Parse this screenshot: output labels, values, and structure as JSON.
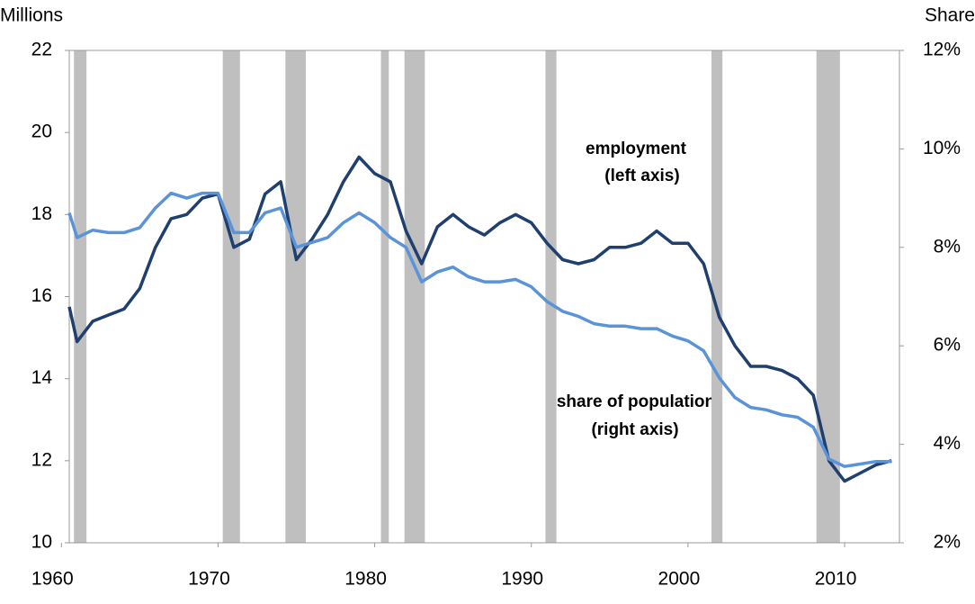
{
  "chart_data": {
    "type": "line",
    "y_label": "Millions",
    "y2_label": "Share",
    "xlim": [
      1960.5,
      2013.5
    ],
    "xticks": [
      1960,
      1970,
      1980,
      1990,
      2000,
      2010
    ],
    "ylim": [
      10,
      22
    ],
    "yticks": [
      10,
      12,
      14,
      16,
      18,
      20,
      22
    ],
    "y2lim": [
      2,
      12
    ],
    "y2ticks": [
      {
        "value": 2,
        "label": "2%"
      },
      {
        "value": 4,
        "label": "4%"
      },
      {
        "value": 6,
        "label": "6%"
      },
      {
        "value": 8,
        "label": "8%"
      },
      {
        "value": 10,
        "label": "10%"
      },
      {
        "value": 12,
        "label": "12%"
      }
    ],
    "shaded_periods": [
      [
        1960.8,
        1961.6
      ],
      [
        1970.3,
        1971.4
      ],
      [
        1974.3,
        1975.6
      ],
      [
        1980.4,
        1980.9
      ],
      [
        1981.9,
        1983.2
      ],
      [
        1990.9,
        1991.6
      ],
      [
        2001.5,
        2002.2
      ],
      [
        2008.2,
        2009.7
      ]
    ],
    "shade_color": "#bfbfbf",
    "x": [
      1960.5,
      1961,
      1962,
      1963,
      1964,
      1965,
      1966,
      1967,
      1968,
      1969,
      1970,
      1971,
      1972,
      1973,
      1974,
      1975,
      1976,
      1977,
      1978,
      1979,
      1980,
      1981,
      1982,
      1983,
      1984,
      1985,
      1986,
      1987,
      1988,
      1989,
      1990,
      1991,
      1992,
      1993,
      1994,
      1995,
      1996,
      1997,
      1998,
      1999,
      2000,
      2001,
      2002,
      2003,
      2004,
      2005,
      2006,
      2007,
      2008,
      2009,
      2010,
      2011,
      2012,
      2013
    ],
    "series": [
      {
        "name": "employment",
        "color": "#1f3f6e",
        "axis": "y",
        "values": [
          15.75,
          14.9,
          15.4,
          15.55,
          15.7,
          16.2,
          17.2,
          17.9,
          18.0,
          18.4,
          18.5,
          17.2,
          17.4,
          18.5,
          18.8,
          16.9,
          17.4,
          18.0,
          18.8,
          19.4,
          19.0,
          18.8,
          17.6,
          16.8,
          17.7,
          18.0,
          17.7,
          17.5,
          17.8,
          18.0,
          17.8,
          17.3,
          16.9,
          16.8,
          16.9,
          17.2,
          17.2,
          17.3,
          17.6,
          17.3,
          17.3,
          16.8,
          15.5,
          14.8,
          14.3,
          14.3,
          14.2,
          14.0,
          13.6,
          12.0,
          11.5,
          11.7,
          11.9,
          12.0
        ]
      },
      {
        "name": "share of population",
        "color": "#5b93d8",
        "axis": "y2",
        "values": [
          8.7,
          8.2,
          8.35,
          8.3,
          8.3,
          8.4,
          8.8,
          9.1,
          9.0,
          9.1,
          9.1,
          8.3,
          8.3,
          8.7,
          8.8,
          8.0,
          8.1,
          8.2,
          8.5,
          8.7,
          8.5,
          8.2,
          8.0,
          7.3,
          7.5,
          7.6,
          7.4,
          7.3,
          7.3,
          7.35,
          7.2,
          6.9,
          6.7,
          6.6,
          6.45,
          6.4,
          6.4,
          6.35,
          6.35,
          6.2,
          6.1,
          5.9,
          5.35,
          4.95,
          4.75,
          4.7,
          4.6,
          4.55,
          4.35,
          3.7,
          3.55,
          3.6,
          3.65,
          3.65
        ]
      }
    ],
    "annotations": [
      {
        "text": "employment",
        "text2": "(left axis)"
      },
      {
        "text": "share of population",
        "text2": "(right axis)"
      }
    ]
  }
}
